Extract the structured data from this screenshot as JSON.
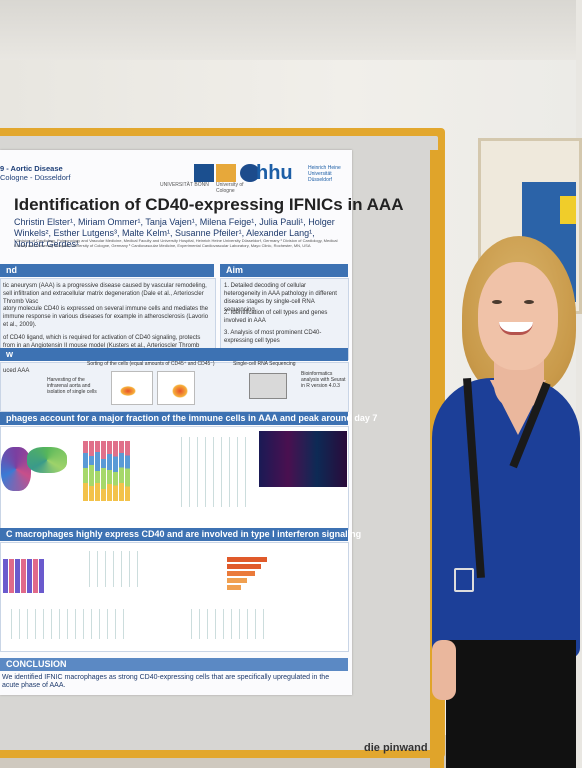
{
  "poster": {
    "conference_line1": "9 - Aortic Disease",
    "conference_line2": "Cologne - Düsseldorf",
    "university_logo_text": "UNIVERSITÄT BONN",
    "cologne_logo_text": "University of Cologne",
    "hhu_logo": "hhu",
    "hhu_subtitle": "Heinrich Heine Universität Düsseldorf",
    "title": "Identification of CD40-expressing IFNICs in AAA",
    "authors": "Christin Elster¹, Miriam Ommer¹, Tanja Vajen¹, Milena Feige¹, Julia Pauli¹, Holger Winkels², Esther Lutgens³, Malte Kelm¹, Susanne Pfeiler¹, Alexander Lang¹, Norbert Gerdes¹",
    "affiliations": "¹ Division of Cardiology, Pulmonology and Vascular Medicine, Medical Faculty and University Hospital, Heinrich Heine University Düsseldorf, Germany  ² Division of Cardiology, Medical Faculty and University Hospital, University of Cologne, Germany  ³ Cardiovascular Medicine, Experimental Cardiovascular Laboratory, Mayo Clinic, Rochester, MN, USA",
    "sections": {
      "background_header": "nd",
      "background_text_1": "tic aneurysm (AAA) is a progressive disease caused by vascular remodeling, sell infiltration and extracellular matrix degeneration (Dale et al., Arterioscler Thromb Vasc",
      "background_text_2": "atory molecule CD40 is expressed on several immune cells and mediates the immune response in various diseases for example in atherosclerosis (Lavorio et al., 2009).",
      "background_text_3": "of CD40 ligand, which is required for activation of CD40 signaling, protects from in an Angiotensin II mouse model (Kusters et al., Arterioscler Thromb Vasc Biol, 2018)",
      "aim_header": "Aim",
      "aim_items": [
        "1. Detailed decoding of cellular heterogeneity in AAA pathology in different disease stages by single-cell RNA sequencing",
        "2. Identification of cell types and genes involved in AAA",
        "3. Analysis of most prominent CD40-expressing cell types"
      ],
      "workflow_header": "w",
      "workflow_steps": [
        "uced AAA",
        "Harvesting of the infrarenal aorta and isolation of single cells",
        "Sorting of the cells (equal amounts of CD45⁺ and CD45⁻)",
        "Single-cell RNA Sequencing",
        "Bioinformatics analysis with Seurat in R version 4.0.3"
      ],
      "result1_header": "phages account for a major fraction of the immune cells in AAA and peak around day 7",
      "result2_header": "C macrophages highly express CD40 and are involved in type I interferon signaling",
      "conclusion_header": "CONCLUSION",
      "conclusion_text": "We identified IFNIC macrophages as strong CD40-expressing cells that are specifically upregulated in the acute phase of AAA."
    }
  },
  "board_brand": "die pinwand",
  "colors": {
    "header_blue": "#3d72b3",
    "board_frame": "#e2a72e",
    "shirt": "#1c3f98"
  }
}
